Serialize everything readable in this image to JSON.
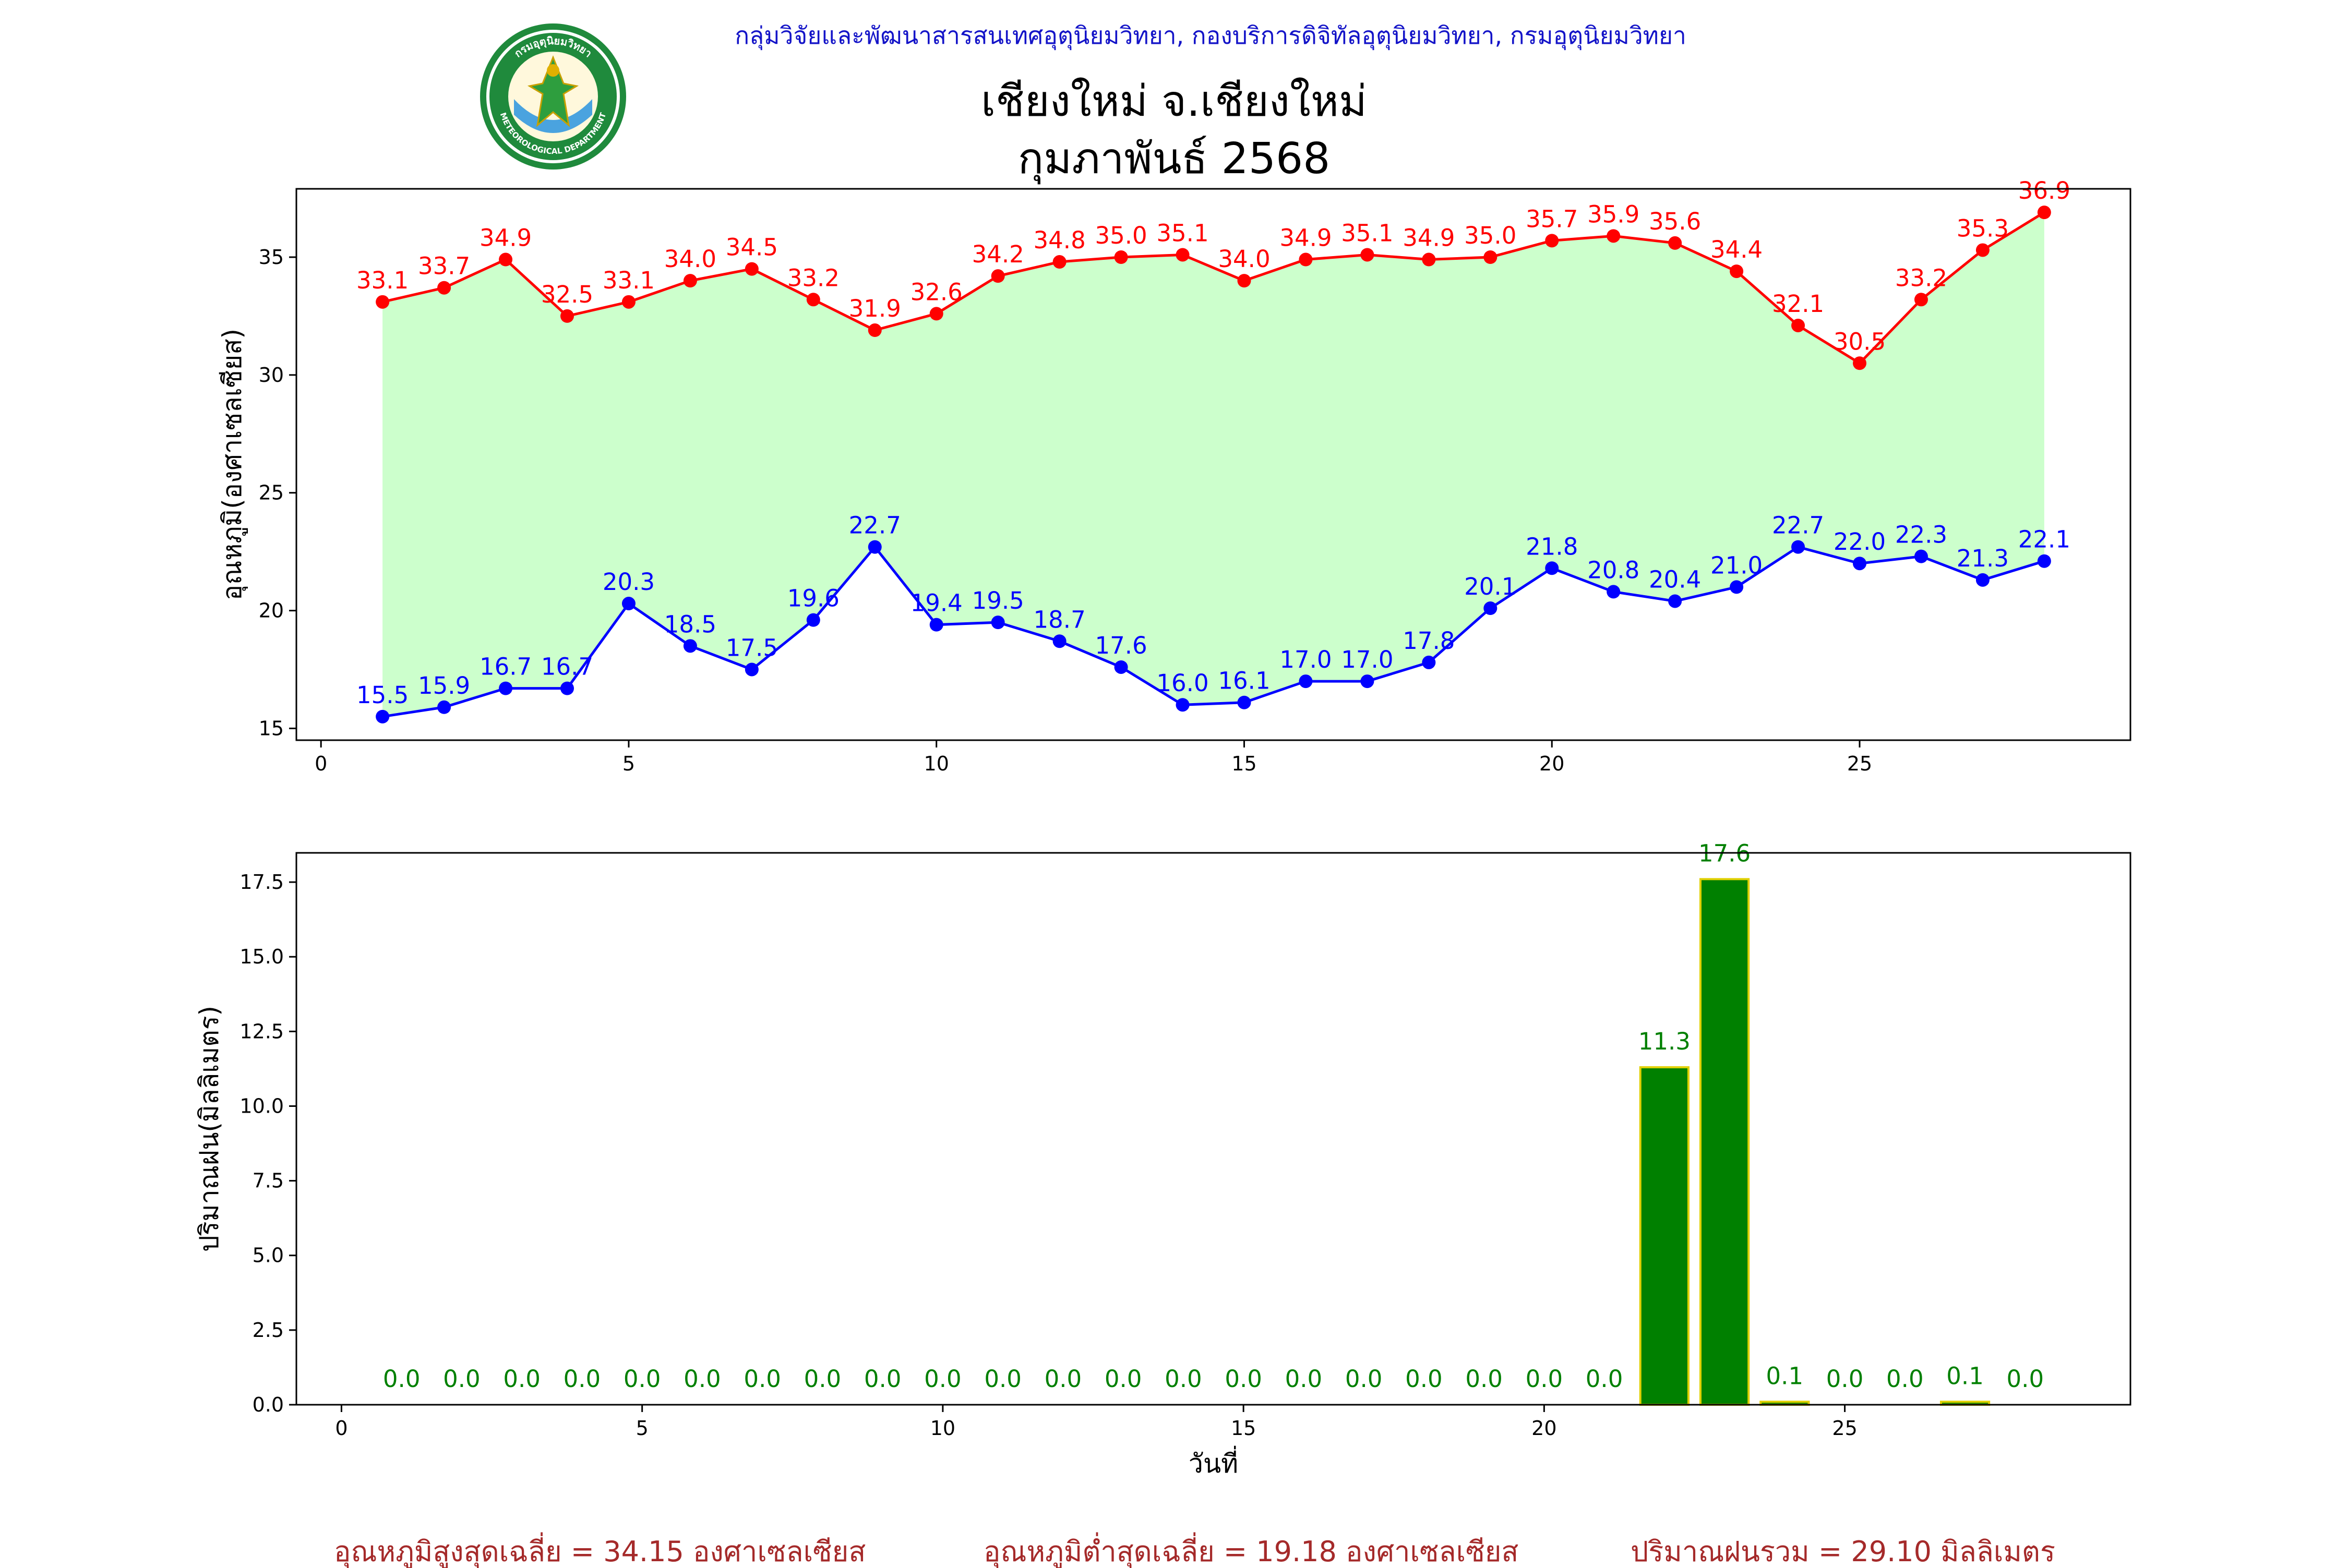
{
  "header": {
    "org": "กลุ่มวิจัยและพัฒนาสารสนเทศอุตุนิยมวิทยา, กองบริการดิจิทัลอุตุนิยมวิทยา, กรมอุตุนิยมวิทยา",
    "title": "เชียงใหม่ จ.เชียงใหม่",
    "subtitle": "กุมภาพันธ์ 2568"
  },
  "logo": {
    "top_text": "กรมอุตุนิยมวิทยา",
    "bottom_text": "METEOROLOGICAL DEPARTMENT"
  },
  "colors": {
    "max_line": "#ff0000",
    "min_line": "#0000ff",
    "band_fill": "#ccffcc",
    "rain_bar": "#008000",
    "rain_bar_edge": "#e0d000",
    "footer_text": "#a52a2a"
  },
  "footer": {
    "avg_max": "อุณหภูมิสูงสุดเฉลี่ย = 34.15 องศาเซลเซียส",
    "avg_min": "อุณหภูมิต่ำสุดเฉลี่ย = 19.18 องศาเซลเซียส",
    "total_rain": "ปริมาณฝนรวม = 29.10 มิลลิเมตร"
  },
  "chart_data": [
    {
      "type": "line",
      "ylabel": "อุณหภูมิ(องศาเซลเซียส)",
      "xlabel": "",
      "x": [
        1,
        2,
        3,
        4,
        5,
        6,
        7,
        8,
        9,
        10,
        11,
        12,
        13,
        14,
        15,
        16,
        17,
        18,
        19,
        20,
        21,
        22,
        23,
        24,
        25,
        26,
        27,
        28
      ],
      "xlim": [
        -0.4,
        29.4
      ],
      "ylim": [
        14.5,
        37.9
      ],
      "xticks": [
        0,
        5,
        10,
        15,
        20,
        25
      ],
      "yticks": [
        15,
        20,
        25,
        30,
        35
      ],
      "fill_between": true,
      "grid": false,
      "series": [
        {
          "key": "max",
          "values": [
            33.1,
            33.7,
            34.9,
            32.5,
            33.1,
            34.0,
            34.5,
            33.2,
            31.9,
            32.6,
            34.2,
            34.8,
            35.0,
            35.1,
            34.0,
            34.9,
            35.1,
            34.9,
            35.0,
            35.7,
            35.9,
            35.6,
            34.4,
            32.1,
            30.5,
            33.2,
            35.3,
            36.9
          ]
        },
        {
          "key": "min",
          "values": [
            15.5,
            15.9,
            16.7,
            16.7,
            20.3,
            18.5,
            17.5,
            19.6,
            22.7,
            19.4,
            19.5,
            18.7,
            17.6,
            16.0,
            16.1,
            17.0,
            17.0,
            17.8,
            20.1,
            21.8,
            20.8,
            20.4,
            21.0,
            22.7,
            22.0,
            22.3,
            21.3,
            22.1
          ]
        }
      ]
    },
    {
      "type": "bar",
      "ylabel": "ปริมาณฝน(มิลลิเมตร)",
      "xlabel": "วันที่",
      "x": [
        1,
        2,
        3,
        4,
        5,
        6,
        7,
        8,
        9,
        10,
        11,
        12,
        13,
        14,
        15,
        16,
        17,
        18,
        19,
        20,
        21,
        22,
        23,
        24,
        25,
        26,
        27,
        28
      ],
      "values": [
        0.0,
        0.0,
        0.0,
        0.0,
        0.0,
        0.0,
        0.0,
        0.0,
        0.0,
        0.0,
        0.0,
        0.0,
        0.0,
        0.0,
        0.0,
        0.0,
        0.0,
        0.0,
        0.0,
        0.0,
        0.0,
        11.3,
        17.6,
        0.1,
        0.0,
        0.0,
        0.1,
        0.0
      ],
      "xlim": [
        -0.75,
        29.75
      ],
      "ylim": [
        0,
        18.48
      ],
      "xticks": [
        0,
        5,
        10,
        15,
        20,
        25
      ],
      "yticks": [
        0.0,
        2.5,
        5.0,
        7.5,
        10.0,
        12.5,
        15.0,
        17.5
      ],
      "grid": false
    }
  ]
}
